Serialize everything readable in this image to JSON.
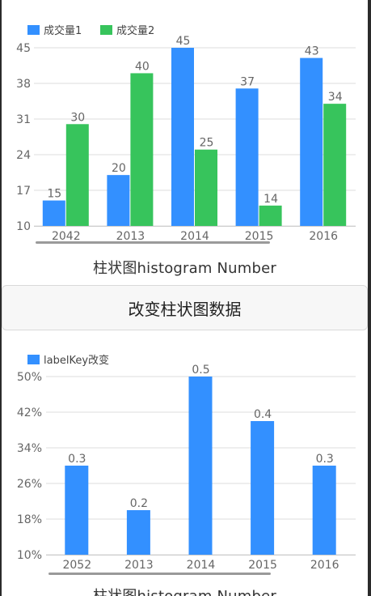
{
  "colors": {
    "series1": "#3390ff",
    "series2": "#37c45c",
    "grid": "#dddddd",
    "axis_text": "#666666",
    "scrollbar": "#9a9a9a"
  },
  "chart1": {
    "caption": "柱状图histogram Number",
    "legend": [
      "成交量1",
      "成交量2"
    ]
  },
  "chart2": {
    "caption": "柱状图histogram Number",
    "legend": [
      "labelKey改变"
    ]
  },
  "button": {
    "label": "改变柱状图数据"
  },
  "chart_data": [
    {
      "type": "bar",
      "categories": [
        "2042",
        "2013",
        "2014",
        "2015",
        "2016"
      ],
      "series": [
        {
          "name": "成交量1",
          "values": [
            15,
            20,
            45,
            37,
            43
          ]
        },
        {
          "name": "成交量2",
          "values": [
            30,
            40,
            25,
            14,
            34
          ]
        }
      ],
      "yticks": [
        "10",
        "17",
        "24",
        "31",
        "38",
        "45"
      ],
      "ylim": [
        10,
        45
      ],
      "grid": true,
      "legend_position": "top-left",
      "title": "柱状图histogram Number"
    },
    {
      "type": "bar",
      "categories": [
        "2052",
        "2013",
        "2014",
        "2015",
        "2016"
      ],
      "series": [
        {
          "name": "labelKey改变",
          "values": [
            0.3,
            0.2,
            0.5,
            0.4,
            0.3
          ]
        }
      ],
      "yticks": [
        "10%",
        "18%",
        "26%",
        "34%",
        "42%",
        "50%"
      ],
      "ylim": [
        0.1,
        0.5
      ],
      "grid": true,
      "legend_position": "top-left",
      "title": "柱状图histogram Number"
    }
  ]
}
